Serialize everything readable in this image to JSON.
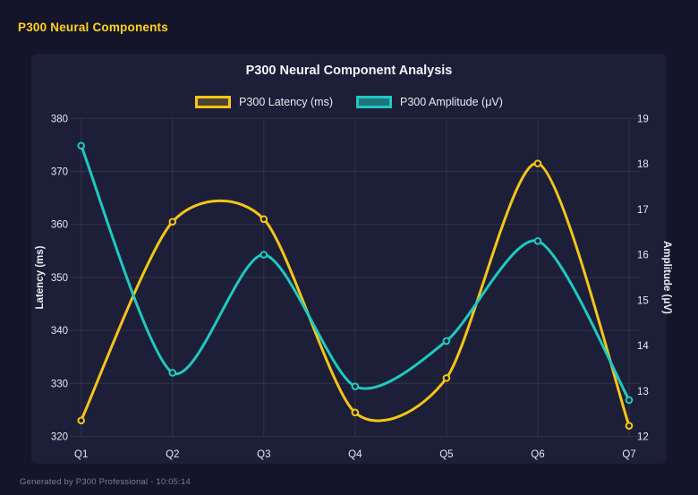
{
  "page": {
    "title": "P300 Neural Components",
    "footer": "Generated by P300 Professional - 10:05:14"
  },
  "chart_data": {
    "type": "line",
    "title": "P300 Neural Component Analysis",
    "categories": [
      "Q1",
      "Q2",
      "Q3",
      "Q4",
      "Q5",
      "Q6",
      "Q7"
    ],
    "series": [
      {
        "name": "P300 Latency (ms)",
        "axis": "left",
        "color": "#f5c518",
        "values": [
          323,
          360.5,
          361,
          324.5,
          331,
          371.5,
          322
        ]
      },
      {
        "name": "P300 Amplitude (μV)",
        "axis": "right",
        "color": "#1fc9c0",
        "values": [
          18.4,
          13.4,
          16.0,
          13.1,
          14.1,
          16.3,
          12.8
        ]
      }
    ],
    "left_axis": {
      "label": "Latency (ms)",
      "min": 320,
      "max": 380,
      "ticks": [
        320,
        330,
        340,
        350,
        360,
        370,
        380
      ]
    },
    "right_axis": {
      "label": "Amplitude (μV)",
      "min": 12,
      "max": 19,
      "ticks": [
        12,
        13,
        14,
        15,
        16,
        17,
        18,
        19
      ]
    },
    "grid": "horizontal-and-vertical",
    "legend_position": "top",
    "line_style": "smooth-spline-with-point-markers"
  },
  "colors": {
    "background": "#14152a",
    "panel": "#1d1f38",
    "gridline": "rgba(255,255,255,0.09)",
    "tick_text": "#e6e7ee",
    "accent_yellow": "#f5c518",
    "accent_teal": "#1fc9c0"
  }
}
